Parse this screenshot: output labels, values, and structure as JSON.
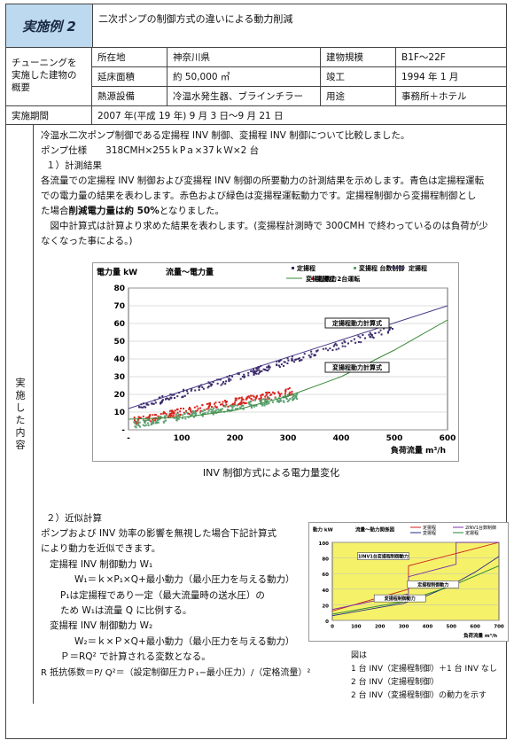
{
  "header": {
    "badge": "実施例 2",
    "title": "二次ポンプの制御方式の違いによる動力削減"
  },
  "building": {
    "label_lines": [
      "チューニングを",
      "実施した建物の",
      "概要"
    ],
    "rows": [
      {
        "k1": "所在地",
        "v1": "神奈川県",
        "k2": "建物規模",
        "v2": "B1F〜22F"
      },
      {
        "k1": "延床面積",
        "v1": "約 50,000 ㎡",
        "k2": "竣工",
        "v2": "1994 年 1 月"
      },
      {
        "k1": "熱源設備",
        "v1": "冷温水発生器、ブラインチラー",
        "k2": "用途",
        "v2": "事務所＋ホテル"
      }
    ]
  },
  "period": {
    "label": "実施期間",
    "value": "2007 年(平成 19 年) 9 月 3 日〜9 月 21 日"
  },
  "side_label": "実施した内容",
  "text": {
    "l1": "冷温水二次ポンプ制御である定揚程 INV 制御、変揚程 INV 制御について比較しました。",
    "l2": "ポンプ仕様　　318CMH×255ｋPａ×37ｋＷ×2 台",
    "l3": "１）計測結果",
    "l4": "各流量での定揚程 INV 制御および変揚程 INV 制御の所要動力の計測結果を示めします。青色は定揚程運転",
    "l5": "での電力量の結果を表わします。赤色および緑色は変揚程運転動力です。定揚程制御から変揚程制御とし",
    "l6a": "た場合",
    "l6b": "削減電力量は約 50%",
    "l6c": "となりました。",
    "l7": "　図中計算式は計算より求めた結果を表わします。(変揚程計測時で 300CMH で終わっているのは負荷が少",
    "l8": "なくなった事による。)",
    "caption1": "INV 制御方式による電力量変化",
    "s2": "２）近似計算",
    "s3": "ポンプおよび INV 効率の影響を無視した場合下記計算式",
    "s4": "により動力を近似できます。",
    "s5": "定揚程 INV 制御動力 W₁",
    "s6": "W₁＝ｋ×P₁×Q+最小動力（最小圧力を与える動力）",
    "s7": "P₁は定揚程であり一定（最大流量時の送水圧）の",
    "s8": "ため W₁は流量 Q に比例する。",
    "s9": "変揚程 INV 制御動力 W₂",
    "s10": "W₂＝ｋ×Ｐ×Q+最小動力（最小圧力を与える動力）",
    "s11": "Ｐ＝RQ² で計算される変数となる。",
    "s12": "R 抵抗係数＝P/ Q²＝（設定制御圧力Ｐ₁−最小圧力）/（定格流量）²"
  },
  "notes": [
    "図は",
    "1 台 INV（定揚程制御）＋1 台 INV なし",
    "2 台 INV（定揚程制御）",
    "2 台 INV（変揚程制御）の動力を示す"
  ],
  "chart_data": [
    {
      "type": "scatter",
      "title": "流量〜電力量",
      "ylabel": "電力量 kW",
      "xlabel": "負荷流量 m³/h",
      "xlim": [
        0,
        600
      ],
      "ylim": [
        0,
        80
      ],
      "xticks": [
        "-",
        "100",
        "200",
        "300",
        "400",
        "500",
        "600"
      ],
      "yticks": [
        "-",
        "10",
        "20",
        "30",
        "40",
        "50",
        "60",
        "70",
        "80"
      ],
      "series": [
        {
          "name": "定揚程",
          "kind": "points",
          "color": "#3a2a6a",
          "x_range": [
            20,
            510
          ],
          "start": 13,
          "end": 58
        },
        {
          "name": "変揚程 2台運転",
          "kind": "points",
          "color": "#d8261e",
          "x_range": [
            10,
            310
          ],
          "start": 5,
          "end": 22
        },
        {
          "name": "変揚程 台数制御",
          "kind": "points",
          "color": "#5aa070",
          "x_range": [
            10,
            320
          ],
          "start": 3,
          "end": 19
        },
        {
          "name": "定揚程",
          "kind": "line",
          "color": "#4a3a88",
          "x": [
            0,
            600
          ],
          "y": [
            12,
            70
          ]
        },
        {
          "name": "変揚程動力",
          "kind": "line",
          "color": "#3a8a3a",
          "x": [
            0,
            100,
            200,
            300,
            400,
            500,
            600
          ],
          "y": [
            6,
            7,
            11,
            19,
            30,
            45,
            62
          ]
        }
      ],
      "annotations": [
        {
          "text": "定揚程動力計算式",
          "x": 420,
          "y": 59
        },
        {
          "text": "変揚程動力計算式",
          "x": 420,
          "y": 34
        }
      ],
      "legend": "top"
    },
    {
      "type": "line",
      "title": "流量〜動力関係図",
      "ylabel": "動力 kW",
      "xlabel": "負荷流量 m³/h",
      "xlim": [
        0,
        700
      ],
      "ylim": [
        0,
        100
      ],
      "xticks": [
        "0",
        "100",
        "200",
        "300",
        "400",
        "500",
        "600",
        "700"
      ],
      "yticks": [
        "0",
        "20",
        "40",
        "60",
        "80",
        "100"
      ],
      "series": [
        {
          "name": "定揚程",
          "color": "#cc2222",
          "x": [
            0,
            320,
            320,
            700
          ],
          "y": [
            12,
            40,
            70,
            100
          ]
        },
        {
          "name": "変揚程",
          "color": "#2a2a8a",
          "x": [
            0,
            300,
            400,
            500,
            600,
            700
          ],
          "y": [
            6,
            22,
            32,
            45,
            62,
            82
          ]
        },
        {
          "name": "2INV1台数制御",
          "color": "#7733aa",
          "x": [
            0,
            320,
            320,
            520,
            520,
            700
          ],
          "y": [
            14,
            34,
            56,
            72,
            100,
            100
          ]
        },
        {
          "name": "定揚程",
          "color": "#228833",
          "x": [
            0,
            300,
            500,
            700
          ],
          "y": [
            8,
            24,
            44,
            70
          ]
        }
      ],
      "annotations": [
        {
          "text": "1INV1台変揚程制御動力",
          "x": 210,
          "y": 80
        },
        {
          "text": "定揚程制御動力",
          "x": 420,
          "y": 44
        },
        {
          "text": "変揚程制御動力",
          "x": 280,
          "y": 26
        }
      ],
      "legend": "top"
    }
  ]
}
